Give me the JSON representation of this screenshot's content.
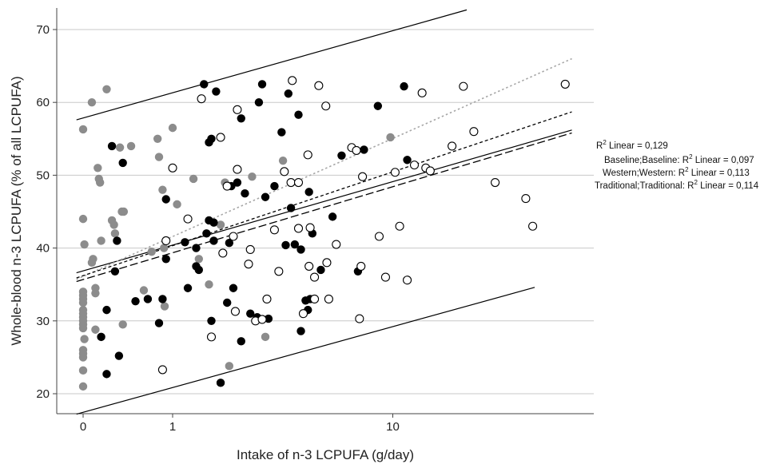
{
  "chart_data": {
    "type": "scatter",
    "title": "",
    "xlabel": "Intake of n-3 LCPUFA (g/day)",
    "ylabel": "Whole-blood n-3 LCPUFA (% of all LCPUFA)",
    "x_scale": "log(x+1)",
    "xlim": [
      0,
      43
    ],
    "ylim": [
      17.5,
      73
    ],
    "x_ticks": [
      {
        "value": 0,
        "label": "0"
      },
      {
        "value": 1,
        "label": "1"
      },
      {
        "value": 10,
        "label": "10"
      }
    ],
    "y_ticks": [
      {
        "value": 20,
        "label": "20"
      },
      {
        "value": 30,
        "label": "30"
      },
      {
        "value": 40,
        "label": "40"
      },
      {
        "value": 50,
        "label": "50"
      },
      {
        "value": 60,
        "label": "60"
      },
      {
        "value": 70,
        "label": "70"
      }
    ],
    "grid": "horizontal",
    "legend_position": "right",
    "legend": [
      {
        "key": "overall",
        "text_main": "R",
        "text_sup": "2",
        "text_rest": " Linear = 0,129"
      },
      {
        "key": "baseline",
        "text_main": "Baseline;Baseline: R",
        "text_sup": "2",
        "text_rest": " Linear = 0,097"
      },
      {
        "key": "western",
        "text_main": "Western;Western: R",
        "text_sup": "2",
        "text_rest": " Linear = 0,113"
      },
      {
        "key": "traditional",
        "text_main": "Traditional;Traditional: R",
        "text_sup": "2",
        "text_rest": " Linear = 0,114"
      }
    ],
    "series": [
      {
        "key": "baseline",
        "marker": "filled-gray",
        "color": "#8c8c8c",
        "points": [
          [
            0,
            56.3
          ],
          [
            0,
            44.0
          ],
          [
            0,
            34.0
          ],
          [
            0,
            33.5
          ],
          [
            0,
            33.0
          ],
          [
            0,
            32.5
          ],
          [
            0,
            31.5
          ],
          [
            0,
            31.0
          ],
          [
            0,
            30.5
          ],
          [
            0,
            30.0
          ],
          [
            0,
            29.5
          ],
          [
            0,
            29.0
          ],
          [
            0,
            26.0
          ],
          [
            0,
            25.5
          ],
          [
            0,
            25.0
          ],
          [
            0,
            23.2
          ],
          [
            0,
            21.0
          ],
          [
            0.01,
            40.5
          ],
          [
            0.01,
            27.5
          ],
          [
            0.07,
            38.0
          ],
          [
            0.08,
            38.5
          ],
          [
            0.07,
            60.0
          ],
          [
            0.1,
            34.5
          ],
          [
            0.1,
            33.8
          ],
          [
            0.1,
            28.8
          ],
          [
            0.12,
            51.0
          ],
          [
            0.13,
            49.5
          ],
          [
            0.14,
            49.0
          ],
          [
            0.15,
            41.0
          ],
          [
            0.2,
            61.8
          ],
          [
            0.25,
            43.8
          ],
          [
            0.27,
            43.2
          ],
          [
            0.28,
            42.0
          ],
          [
            0.33,
            53.8
          ],
          [
            0.35,
            45.0
          ],
          [
            0.37,
            45.0
          ],
          [
            0.36,
            29.5
          ],
          [
            0.45,
            54.0
          ],
          [
            0.6,
            34.2
          ],
          [
            0.7,
            39.5
          ],
          [
            0.78,
            55.0
          ],
          [
            0.8,
            52.5
          ],
          [
            0.85,
            48.0
          ],
          [
            0.87,
            40.0
          ],
          [
            0.88,
            32.0
          ],
          [
            1.0,
            56.5
          ],
          [
            1.07,
            46.0
          ],
          [
            1.25,
            44.0
          ],
          [
            1.35,
            49.5
          ],
          [
            1.45,
            38.5
          ],
          [
            1.65,
            35.0
          ],
          [
            1.9,
            43.2
          ],
          [
            2.0,
            49.0
          ],
          [
            2.1,
            23.8
          ],
          [
            2.7,
            49.8
          ],
          [
            3.1,
            27.8
          ],
          [
            3.7,
            52.0
          ],
          [
            9.8,
            55.2
          ]
        ]
      },
      {
        "key": "western",
        "marker": "filled-black",
        "color": "#000000",
        "points": [
          [
            0.2,
            22.7
          ],
          [
            0.2,
            31.5
          ],
          [
            0.15,
            27.8
          ],
          [
            0.25,
            54.0
          ],
          [
            0.28,
            36.8
          ],
          [
            0.3,
            41.0
          ],
          [
            0.32,
            25.2
          ],
          [
            0.36,
            51.7
          ],
          [
            0.5,
            32.7
          ],
          [
            0.65,
            33.0
          ],
          [
            0.8,
            29.7
          ],
          [
            0.85,
            33.0
          ],
          [
            0.9,
            46.7
          ],
          [
            0.9,
            38.5
          ],
          [
            1.2,
            40.8
          ],
          [
            1.25,
            34.5
          ],
          [
            1.4,
            40.0
          ],
          [
            1.4,
            37.5
          ],
          [
            1.45,
            37.0
          ],
          [
            1.55,
            62.5
          ],
          [
            1.6,
            42.0
          ],
          [
            1.65,
            43.8
          ],
          [
            1.65,
            54.5
          ],
          [
            1.7,
            55.0
          ],
          [
            1.8,
            61.5
          ],
          [
            1.75,
            41.0
          ],
          [
            1.7,
            30.0
          ],
          [
            1.75,
            43.5
          ],
          [
            1.9,
            21.5
          ],
          [
            2.05,
            32.5
          ],
          [
            2.1,
            40.7
          ],
          [
            2.15,
            48.5
          ],
          [
            2.2,
            34.5
          ],
          [
            2.3,
            49.0
          ],
          [
            2.4,
            27.2
          ],
          [
            2.4,
            57.8
          ],
          [
            2.5,
            47.5
          ],
          [
            2.65,
            31.0
          ],
          [
            2.85,
            30.5
          ],
          [
            2.9,
            60.0
          ],
          [
            3.0,
            62.5
          ],
          [
            3.1,
            47.0
          ],
          [
            3.2,
            30.3
          ],
          [
            3.4,
            48.5
          ],
          [
            3.65,
            55.9
          ],
          [
            3.8,
            40.4
          ],
          [
            3.9,
            61.2
          ],
          [
            4.0,
            45.5
          ],
          [
            4.15,
            40.5
          ],
          [
            4.3,
            58.3
          ],
          [
            4.4,
            28.6
          ],
          [
            4.4,
            39.8
          ],
          [
            4.6,
            32.8
          ],
          [
            4.7,
            31.5
          ],
          [
            4.75,
            47.7
          ],
          [
            4.8,
            33.0
          ],
          [
            4.9,
            42.0
          ],
          [
            5.3,
            37.0
          ],
          [
            5.9,
            44.3
          ],
          [
            6.4,
            52.7
          ],
          [
            7.4,
            36.8
          ],
          [
            7.8,
            53.5
          ],
          [
            8.8,
            59.5
          ],
          [
            11.0,
            62.2
          ],
          [
            11.3,
            52.1
          ]
        ]
      },
      {
        "key": "traditional",
        "marker": "open",
        "color": "#000000",
        "points": [
          [
            0.85,
            23.3
          ],
          [
            0.9,
            41.0
          ],
          [
            1.0,
            51.0
          ],
          [
            1.25,
            44.0
          ],
          [
            1.5,
            60.5
          ],
          [
            1.7,
            27.8
          ],
          [
            1.9,
            55.2
          ],
          [
            1.95,
            39.3
          ],
          [
            2.05,
            48.5
          ],
          [
            2.2,
            41.6
          ],
          [
            2.25,
            31.3
          ],
          [
            2.3,
            59.0
          ],
          [
            2.3,
            50.8
          ],
          [
            2.6,
            37.8
          ],
          [
            2.65,
            39.8
          ],
          [
            2.8,
            30.0
          ],
          [
            3.0,
            30.2
          ],
          [
            3.15,
            33.0
          ],
          [
            3.4,
            42.5
          ],
          [
            3.55,
            36.8
          ],
          [
            3.75,
            50.5
          ],
          [
            4.0,
            49.0
          ],
          [
            4.05,
            63.0
          ],
          [
            4.3,
            49.0
          ],
          [
            4.3,
            42.7
          ],
          [
            4.5,
            31.0
          ],
          [
            4.7,
            52.8
          ],
          [
            4.75,
            37.5
          ],
          [
            4.8,
            42.8
          ],
          [
            5.0,
            36.0
          ],
          [
            5.0,
            33.0
          ],
          [
            5.2,
            62.3
          ],
          [
            5.55,
            59.5
          ],
          [
            5.6,
            38.0
          ],
          [
            5.7,
            33.0
          ],
          [
            6.1,
            40.5
          ],
          [
            7.0,
            53.8
          ],
          [
            7.3,
            53.4
          ],
          [
            7.7,
            49.8
          ],
          [
            7.5,
            30.3
          ],
          [
            7.6,
            37.5
          ],
          [
            8.9,
            41.6
          ],
          [
            9.4,
            36.0
          ],
          [
            10.2,
            50.4
          ],
          [
            10.6,
            43.0
          ],
          [
            11.3,
            35.6
          ],
          [
            12.0,
            51.4
          ],
          [
            12.8,
            61.3
          ],
          [
            13.2,
            51.0
          ],
          [
            13.7,
            50.6
          ],
          [
            16.4,
            54.0
          ],
          [
            18.0,
            62.2
          ],
          [
            19.6,
            56.0
          ],
          [
            23.3,
            49.0
          ],
          [
            29.8,
            46.8
          ],
          [
            31.5,
            43.0
          ],
          [
            40.8,
            62.5
          ]
        ]
      }
    ],
    "lines": [
      {
        "key": "overall",
        "style": "solid",
        "color": "#000000",
        "from": [
          -0.05,
          36.6
        ],
        "to": [
          43,
          56.2
        ]
      },
      {
        "key": "baseline",
        "style": "dotted",
        "color": "#a6a6a6",
        "from": [
          -0.05,
          35.7
        ],
        "to": [
          43,
          66.0
        ]
      },
      {
        "key": "western",
        "style": "short-dash",
        "color": "#000000",
        "from": [
          -0.05,
          35.9
        ],
        "to": [
          43,
          58.7
        ]
      },
      {
        "key": "traditional",
        "style": "long-dash",
        "color": "#000000",
        "from": [
          -0.05,
          35.4
        ],
        "to": [
          43,
          55.8
        ]
      },
      {
        "key": "upper-ci",
        "style": "solid",
        "color": "#000000",
        "from": [
          -0.05,
          57.6
        ],
        "to": [
          18.5,
          72.7
        ]
      },
      {
        "key": "lower-ci",
        "style": "solid",
        "color": "#000000",
        "from": [
          -0.05,
          17.2
        ],
        "to": [
          32,
          34.6
        ]
      }
    ]
  }
}
